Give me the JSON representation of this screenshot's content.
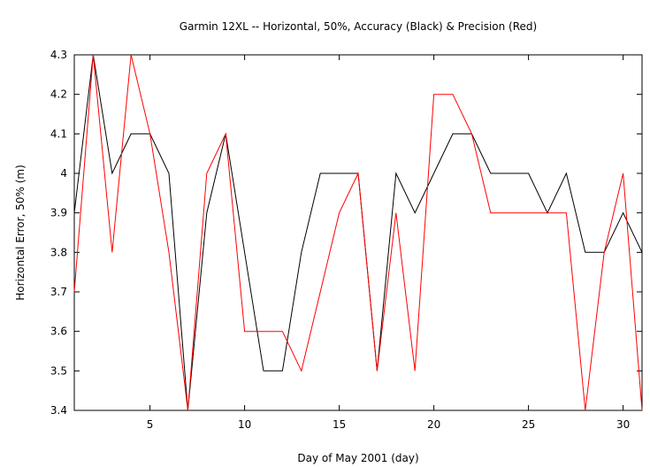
{
  "chart_data": {
    "type": "line",
    "title": "Garmin 12XL -- Horizontal, 50%, Accuracy (Black) & Precision (Red)",
    "xlabel": "Day of May 2001  (day)",
    "ylabel": "Horizontal Error, 50%  (m)",
    "xlim": [
      1,
      31
    ],
    "ylim": [
      3.4,
      4.3
    ],
    "xticks": [
      5,
      10,
      15,
      20,
      25,
      30
    ],
    "yticks": [
      3.4,
      3.5,
      3.6,
      3.7,
      3.8,
      3.9,
      4.0,
      4.1,
      4.2,
      4.3
    ],
    "ytick_labels": [
      "3.4",
      "3.5",
      "3.6",
      "3.7",
      "3.8",
      "3.9",
      "4",
      "4.1",
      "4.2",
      "4.3"
    ],
    "grid": false,
    "legend": "none",
    "x": [
      1,
      2,
      3,
      4,
      5,
      6,
      7,
      8,
      9,
      10,
      11,
      12,
      13,
      14,
      15,
      16,
      17,
      18,
      19,
      20,
      21,
      22,
      23,
      24,
      25,
      26,
      27,
      28,
      29,
      30,
      31
    ],
    "series": [
      {
        "color": "#000000",
        "values": [
          3.9,
          4.3,
          4.0,
          4.1,
          4.1,
          4.0,
          3.4,
          3.9,
          4.1,
          3.8,
          3.5,
          3.5,
          3.8,
          4.0,
          4.0,
          4.0,
          3.5,
          4.0,
          3.9,
          4.0,
          4.1,
          4.1,
          4.0,
          4.0,
          4.0,
          3.9,
          4.0,
          3.8,
          3.8,
          3.9,
          3.8
        ]
      },
      {
        "color": "#ff0000",
        "values": [
          3.7,
          4.3,
          3.8,
          4.3,
          4.1,
          3.8,
          3.4,
          4.0,
          4.1,
          3.6,
          3.6,
          3.6,
          3.5,
          3.7,
          3.9,
          4.0,
          3.5,
          3.9,
          3.5,
          4.2,
          4.2,
          4.1,
          3.9,
          3.9,
          3.9,
          3.9,
          3.9,
          3.4,
          3.8,
          4.0,
          3.4
        ]
      }
    ]
  }
}
